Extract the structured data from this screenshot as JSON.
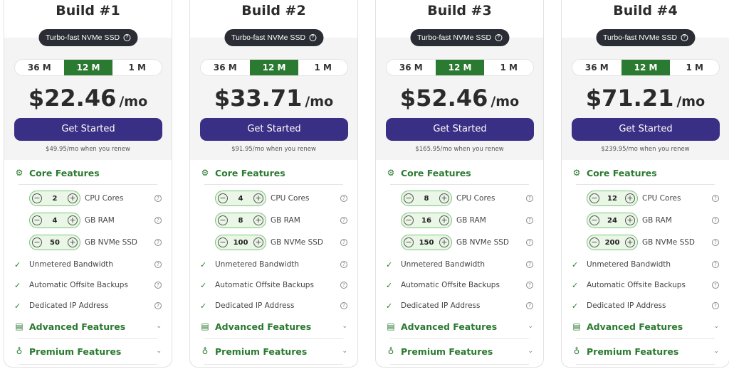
{
  "common": {
    "badge": "Turbo-fast NVMe SSD",
    "terms": [
      "36 M",
      "12 M",
      "1 M"
    ],
    "selected_term": "12 M",
    "per": "/mo",
    "cta": "Get Started",
    "core_title": "Core Features",
    "advanced_title": "Advanced Features",
    "premium_title": "Premium Features",
    "resource_labels": [
      "CPU Cores",
      "GB RAM",
      "GB NVMe SSD"
    ],
    "features": [
      "Unmetered Bandwidth",
      "Automatic Offsite Backups",
      "Dedicated IP Address"
    ]
  },
  "colors": {
    "accent_green": "#2b7a31",
    "button_purple": "#392f84",
    "badge_dark": "#2a2d34"
  },
  "plans": [
    {
      "title": "Build #1",
      "price": "$22.46",
      "renew": "$49.95/mo when you renew",
      "resources": [
        "2",
        "4",
        "50"
      ]
    },
    {
      "title": "Build #2",
      "price": "$33.71",
      "renew": "$91.95/mo when you renew",
      "resources": [
        "4",
        "8",
        "100"
      ]
    },
    {
      "title": "Build #3",
      "price": "$52.46",
      "renew": "$165.95/mo when you renew",
      "resources": [
        "8",
        "16",
        "150"
      ]
    },
    {
      "title": "Build #4",
      "price": "$71.21",
      "renew": "$239.95/mo when you renew",
      "resources": [
        "12",
        "24",
        "200"
      ]
    }
  ]
}
